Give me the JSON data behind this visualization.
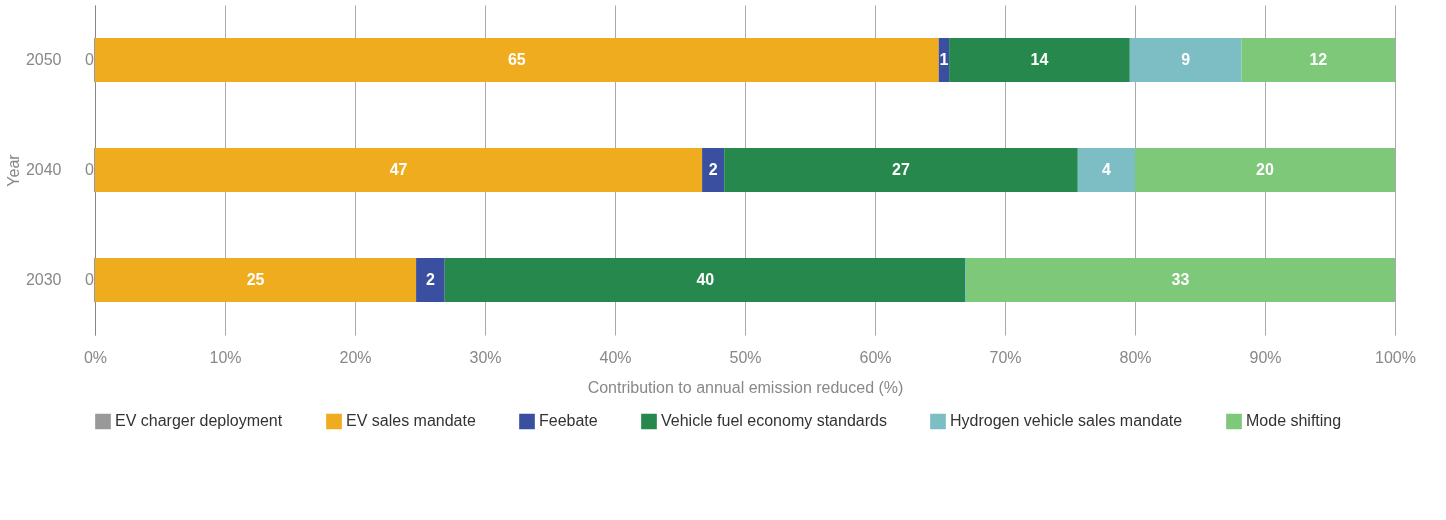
{
  "chart_data": {
    "type": "bar",
    "orientation": "horizontal",
    "stacked": true,
    "categories": [
      "2050",
      "2040",
      "2030"
    ],
    "series": [
      {
        "name": "EV charger deployment",
        "color": "#999999",
        "values": [
          0,
          0,
          0
        ],
        "value_labels": [
          "0",
          "0",
          "0"
        ]
      },
      {
        "name": "EV sales mandate",
        "color": "#efac1f",
        "values": [
          64.9,
          46.7,
          24.7
        ],
        "value_labels": [
          "65",
          "47",
          "25"
        ]
      },
      {
        "name": "Feebate",
        "color": "#3a4fa0",
        "values": [
          0.8,
          1.7,
          2.2
        ],
        "value_labels": [
          "1",
          "2",
          "2"
        ]
      },
      {
        "name": "Vehicle fuel economy standards",
        "color": "#27884d",
        "values": [
          13.9,
          27.2,
          40.1
        ],
        "value_labels": [
          "14",
          "27",
          "40"
        ]
      },
      {
        "name": "Hydrogen vehicle sales mandate",
        "color": "#7dbdc4",
        "values": [
          8.6,
          4.4,
          0
        ],
        "value_labels": [
          "9",
          "4",
          null
        ]
      },
      {
        "name": "Mode shifting",
        "color": "#7ec87a",
        "values": [
          11.8,
          20.0,
          33.0
        ],
        "value_labels": [
          "12",
          "20",
          "33"
        ]
      }
    ],
    "xlim": [
      0,
      100
    ],
    "xticks": [
      {
        "value": 0,
        "label": "0%"
      },
      {
        "value": 10,
        "label": "10%"
      },
      {
        "value": 20,
        "label": "20%"
      },
      {
        "value": 30,
        "label": "30%"
      },
      {
        "value": 40,
        "label": "40%"
      },
      {
        "value": 50,
        "label": "50%"
      },
      {
        "value": 60,
        "label": "60%"
      },
      {
        "value": 70,
        "label": "70%"
      },
      {
        "value": 80,
        "label": "80%"
      },
      {
        "value": 90,
        "label": "90%"
      },
      {
        "value": 100,
        "label": "100%"
      }
    ],
    "xlabel": "Contribution to annual emission reduced (%)",
    "ylabel": "Year",
    "grid": "x",
    "legend": "bottom"
  }
}
